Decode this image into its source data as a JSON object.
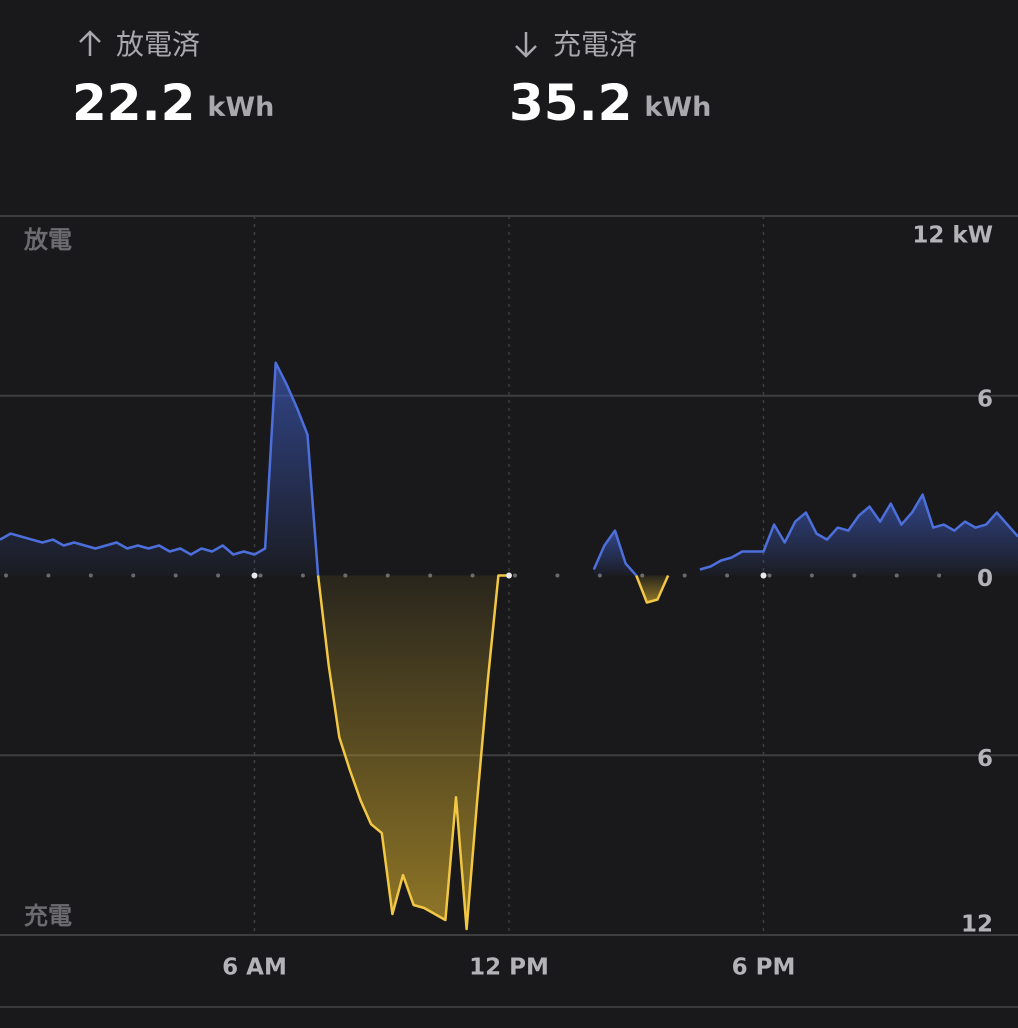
{
  "header": {
    "discharged": {
      "label": "放電済",
      "value": "22.2",
      "unit": "kWh"
    },
    "charged": {
      "label": "充電済",
      "value": "35.2",
      "unit": "kWh"
    }
  },
  "chart_data": {
    "type": "area",
    "top_label": "放電",
    "bottom_label": "充電",
    "xlim": [
      0,
      24
    ],
    "xticks": [
      {
        "value": 6,
        "label": "6 AM"
      },
      {
        "value": 12,
        "label": "12 PM"
      },
      {
        "value": 18,
        "label": "6 PM"
      }
    ],
    "ylim": [
      -12,
      12
    ],
    "yticks": [
      {
        "value": 12,
        "label": "12 kW"
      },
      6,
      0,
      {
        "value": -6,
        "label": "6"
      },
      {
        "value": -12,
        "label": "12"
      }
    ],
    "grid": true,
    "x": [
      0,
      0.25,
      0.5,
      0.75,
      1,
      1.25,
      1.5,
      1.75,
      2,
      2.25,
      2.5,
      2.75,
      3,
      3.25,
      3.5,
      3.75,
      4,
      4.25,
      4.5,
      4.75,
      5,
      5.25,
      5.5,
      5.75,
      6,
      6.25,
      6.5,
      6.75,
      7,
      7.25,
      7.5,
      7.75,
      8,
      8.25,
      8.5,
      8.75,
      9,
      9.25,
      9.5,
      9.75,
      10,
      10.25,
      10.5,
      10.75,
      11,
      11.25,
      11.5,
      11.75,
      12,
      12.25,
      12.5,
      12.75,
      13,
      13.25,
      13.5,
      13.75,
      14,
      14.25,
      14.5,
      14.75,
      15,
      15.25,
      15.5,
      15.75,
      16,
      16.25,
      16.5,
      16.75,
      17,
      17.25,
      17.5,
      17.75,
      18,
      18.25,
      18.5,
      18.75,
      19,
      19.25,
      19.5,
      19.75,
      20,
      20.25,
      20.5,
      20.75,
      21,
      21.25,
      21.5,
      21.75,
      22,
      22.25,
      22.5,
      22.75,
      23,
      23.25,
      23.5,
      23.75,
      24
    ],
    "series": [
      {
        "color": "#4d6fdb",
        "fill_color": "#3a55b0",
        "values": [
          1.2,
          1.4,
          1.3,
          1.2,
          1.1,
          1.2,
          1.0,
          1.1,
          1.0,
          0.9,
          1.0,
          1.1,
          0.9,
          1.0,
          0.9,
          1.0,
          0.8,
          0.9,
          0.7,
          0.9,
          0.8,
          1.0,
          0.7,
          0.8,
          0.7,
          0.9,
          7.1,
          6.4,
          5.6,
          4.7,
          0,
          null,
          null,
          null,
          null,
          null,
          null,
          null,
          null,
          null,
          null,
          null,
          null,
          null,
          null,
          null,
          null,
          null,
          null,
          null,
          null,
          null,
          null,
          null,
          null,
          null,
          0.2,
          1.0,
          1.5,
          0.4,
          0,
          null,
          null,
          null,
          null,
          null,
          0.2,
          0.3,
          0.5,
          0.6,
          0.8,
          0.8,
          0.8,
          1.7,
          1.1,
          1.8,
          2.1,
          1.4,
          1.2,
          1.6,
          1.5,
          2.0,
          2.3,
          1.8,
          2.4,
          1.7,
          2.1,
          2.7,
          1.6,
          1.7,
          1.5,
          1.8,
          1.6,
          1.7,
          2.1,
          1.7,
          1.3
        ]
      },
      {
        "color": "#f2c744",
        "fill_color": "#b8962a",
        "values": [
          null,
          null,
          null,
          null,
          null,
          null,
          null,
          null,
          null,
          null,
          null,
          null,
          null,
          null,
          null,
          null,
          null,
          null,
          null,
          null,
          null,
          null,
          null,
          null,
          null,
          null,
          null,
          null,
          null,
          null,
          0,
          -3.0,
          -5.4,
          -6.5,
          -7.5,
          -8.3,
          -8.6,
          -11.3,
          -10.0,
          -11.0,
          -11.1,
          -11.3,
          -11.5,
          -7.4,
          -11.8,
          -7.5,
          -3.5,
          0,
          0,
          null,
          null,
          null,
          null,
          null,
          null,
          null,
          null,
          null,
          null,
          null,
          0,
          -0.9,
          -0.8,
          0,
          null,
          null,
          null,
          null,
          null,
          null,
          null,
          null,
          null,
          null,
          null,
          null,
          null,
          null,
          null,
          null,
          null,
          null,
          null,
          null,
          null,
          null,
          null,
          null,
          null,
          null,
          null,
          null,
          null,
          null,
          null,
          null,
          null
        ]
      }
    ]
  }
}
